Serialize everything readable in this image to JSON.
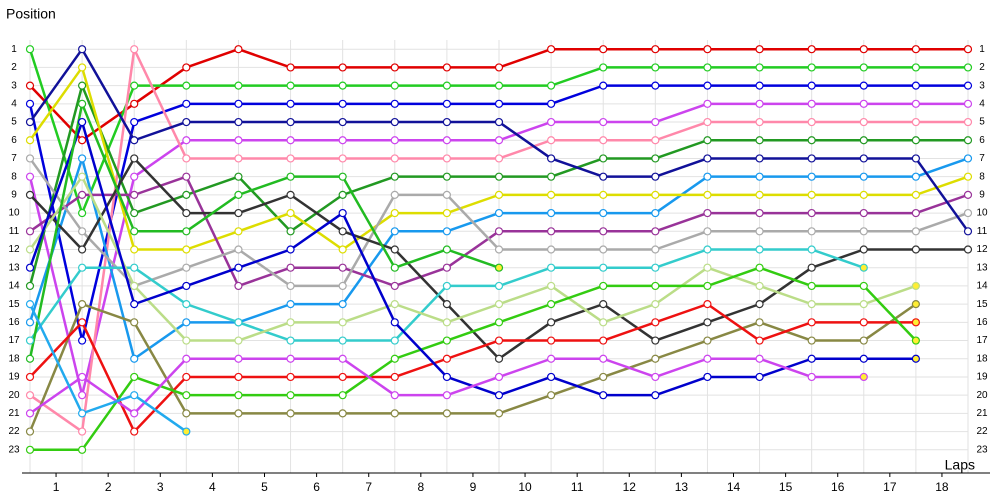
{
  "chart_data": {
    "type": "lap",
    "y_label": "Position",
    "x_label": "Laps",
    "x": [
      0,
      1,
      2,
      3,
      4,
      5,
      6,
      7,
      8,
      9,
      10,
      11,
      12,
      13,
      14,
      15,
      16,
      17,
      18
    ],
    "xlim": [
      0,
      18
    ],
    "xticks": [
      {
        "value": 0.5,
        "label": "1"
      },
      {
        "value": 1.5,
        "label": "2"
      },
      {
        "value": 2.5,
        "label": "3"
      },
      {
        "value": 3.5,
        "label": "4"
      },
      {
        "value": 4.5,
        "label": "5"
      },
      {
        "value": 5.5,
        "label": "6"
      },
      {
        "value": 6.5,
        "label": "7"
      },
      {
        "value": 7.5,
        "label": "8"
      },
      {
        "value": 8.5,
        "label": "9"
      },
      {
        "value": 9.5,
        "label": "10"
      },
      {
        "value": 10.5,
        "label": "11"
      },
      {
        "value": 11.5,
        "label": "12"
      },
      {
        "value": 12.5,
        "label": "13"
      },
      {
        "value": 13.5,
        "label": "14"
      },
      {
        "value": 14.5,
        "label": "15"
      },
      {
        "value": 15.5,
        "label": "16"
      },
      {
        "value": 16.5,
        "label": "17"
      },
      {
        "value": 17.5,
        "label": "18"
      }
    ],
    "ylim": [
      0,
      24
    ],
    "inverted": true,
    "yticks": [
      1,
      2,
      3,
      4,
      5,
      6,
      7,
      8,
      9,
      10,
      11,
      12,
      13,
      14,
      15,
      16,
      17,
      18,
      19,
      20,
      21,
      22,
      23
    ],
    "grid": true,
    "series": [
      {
        "color": "#e00000",
        "values": [
          3,
          6,
          4,
          2,
          1,
          2,
          2,
          2,
          2,
          2,
          1,
          1,
          1,
          1,
          1,
          1,
          1,
          1,
          1
        ]
      },
      {
        "color": "#22cc22",
        "values": [
          1,
          10,
          3,
          3,
          3,
          3,
          3,
          3,
          3,
          3,
          3,
          2,
          2,
          2,
          2,
          2,
          2,
          2,
          2
        ]
      },
      {
        "color": "#0000dd",
        "values": [
          4,
          17,
          5,
          4,
          4,
          4,
          4,
          4,
          4,
          4,
          4,
          3,
          3,
          3,
          3,
          3,
          3,
          3,
          3
        ]
      },
      {
        "color": "#cc44ee",
        "values": [
          8,
          20,
          8,
          6,
          6,
          6,
          6,
          6,
          6,
          6,
          5,
          5,
          5,
          4,
          4,
          4,
          4,
          4,
          4
        ]
      },
      {
        "color": "#ff88aa",
        "values": [
          20,
          22,
          1,
          7,
          7,
          7,
          7,
          7,
          7,
          7,
          6,
          6,
          6,
          5,
          5,
          5,
          5,
          5,
          5
        ]
      },
      {
        "color": "#229922",
        "values": [
          14,
          3,
          10,
          9,
          8,
          11,
          9,
          8,
          8,
          8,
          8,
          7,
          7,
          6,
          6,
          6,
          6,
          6,
          6
        ]
      },
      {
        "color": "#1899ee",
        "values": [
          16,
          7,
          18,
          16,
          16,
          15,
          15,
          11,
          11,
          10,
          10,
          10,
          10,
          8,
          8,
          8,
          8,
          8,
          7
        ]
      },
      {
        "color": "#dddd00",
        "values": [
          6,
          2,
          12,
          12,
          11,
          10,
          12,
          10,
          10,
          9,
          9,
          9,
          9,
          9,
          9,
          9,
          9,
          9,
          8
        ]
      },
      {
        "color": "#993399",
        "values": [
          11,
          9,
          9,
          8,
          14,
          13,
          13,
          14,
          13,
          11,
          11,
          11,
          11,
          10,
          10,
          10,
          10,
          10,
          9
        ]
      },
      {
        "color": "#aaaaaa",
        "values": [
          7,
          11,
          14,
          13,
          12,
          14,
          14,
          9,
          9,
          12,
          12,
          12,
          12,
          11,
          11,
          11,
          11,
          11,
          10
        ]
      },
      {
        "color": "#111199",
        "values": [
          5,
          1,
          6,
          5,
          5,
          5,
          5,
          5,
          5,
          5,
          7,
          8,
          8,
          7,
          7,
          7,
          7,
          7,
          11
        ]
      },
      {
        "color": "#333333",
        "values": [
          9,
          12,
          7,
          10,
          10,
          9,
          11,
          12,
          15,
          18,
          16,
          15,
          17,
          16,
          15,
          13,
          12,
          12,
          12
        ]
      },
      {
        "color": "#33cccc",
        "values": [
          17,
          13,
          13,
          15,
          16,
          17,
          17,
          17,
          14,
          14,
          13,
          13,
          13,
          12,
          12,
          12,
          13,
          null,
          null
        ]
      },
      {
        "color": "#bbdd88",
        "values": [
          12,
          8,
          14,
          17,
          17,
          16,
          16,
          15,
          16,
          15,
          14,
          16,
          15,
          13,
          14,
          15,
          15,
          14,
          null
        ]
      },
      {
        "color": "#888844",
        "values": [
          22,
          15,
          16,
          21,
          21,
          21,
          21,
          21,
          21,
          21,
          20,
          19,
          18,
          17,
          16,
          17,
          17,
          15,
          null
        ]
      },
      {
        "color": "#ee1111",
        "values": [
          19,
          16,
          22,
          19,
          19,
          19,
          19,
          19,
          18,
          17,
          17,
          17,
          16,
          15,
          17,
          16,
          16,
          16,
          null
        ]
      },
      {
        "color": "#33cc11",
        "values": [
          23,
          23,
          19,
          20,
          20,
          20,
          20,
          18,
          17,
          16,
          15,
          14,
          14,
          14,
          13,
          14,
          14,
          17,
          null
        ]
      },
      {
        "color": "#0000cc",
        "values": [
          13,
          5,
          15,
          14,
          13,
          12,
          10,
          16,
          19,
          20,
          19,
          20,
          20,
          19,
          19,
          18,
          18,
          18,
          null
        ]
      },
      {
        "color": "#cc44ee",
        "values": [
          21,
          19,
          21,
          18,
          18,
          18,
          18,
          20,
          20,
          19,
          18,
          18,
          19,
          18,
          18,
          19,
          19,
          null,
          null
        ]
      },
      {
        "color": "#22bb22",
        "values": [
          18,
          4,
          11,
          11,
          9,
          8,
          8,
          13,
          12,
          13,
          null,
          null,
          null,
          null,
          null,
          null,
          null,
          null,
          null
        ]
      },
      {
        "color": "#22aaee",
        "values": [
          15,
          21,
          20,
          22,
          null,
          null,
          null,
          null,
          null,
          null,
          null,
          null,
          null,
          null,
          null,
          null,
          null,
          null,
          null
        ]
      }
    ]
  }
}
